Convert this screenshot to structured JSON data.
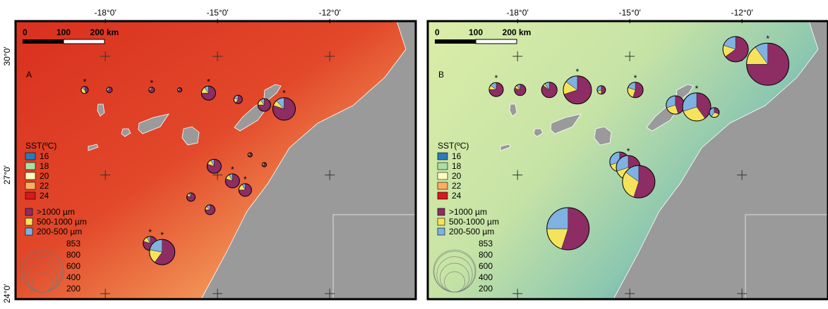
{
  "map": {
    "xlim": [
      -20.4,
      -9.7
    ],
    "ylim": [
      23.86,
      30.89
    ],
    "xticks": [
      {
        "value": -18,
        "label": "-18°0′"
      },
      {
        "value": -15,
        "label": "-15°0′"
      },
      {
        "value": -12,
        "label": "-12°0′"
      }
    ],
    "yticks": [
      {
        "value": 30,
        "label": "30°0′"
      },
      {
        "value": 27,
        "label": "27°0′"
      },
      {
        "value": 24,
        "label": "24°0′"
      }
    ],
    "scale_bar": [
      "0",
      "100",
      "200 km"
    ],
    "sst_legend": {
      "title": "SST(ºC)",
      "values": [
        16,
        18,
        20,
        22,
        24
      ],
      "colors": [
        "#2c7bb6",
        "#abdda4",
        "#ffffbf",
        "#fdae61",
        "#d7191c"
      ]
    },
    "classes": [
      {
        "name": ">1000 µm",
        "color": "#8e2c64"
      },
      {
        "name": "500-1000 µm",
        "color": "#f6e35c"
      },
      {
        "name": "200-500 µm",
        "color": "#7fb2e2"
      }
    ],
    "size_legend": [
      853,
      800,
      600,
      400,
      200
    ]
  },
  "panels": [
    {
      "label": "A",
      "pies": [
        {
          "lon": -18.55,
          "lat": 29.15,
          "total": 24,
          "fractions": [
            45,
            40,
            15
          ],
          "mark": "*"
        },
        {
          "lon": -17.89,
          "lat": 29.15,
          "total": 15,
          "fractions": [
            70,
            15,
            15
          ]
        },
        {
          "lon": -16.76,
          "lat": 29.15,
          "total": 15,
          "fractions": [
            75,
            15,
            10
          ],
          "mark": "*"
        },
        {
          "lon": -16.01,
          "lat": 29.15,
          "total": 9,
          "fractions": [
            70,
            20,
            10
          ]
        },
        {
          "lon": -15.24,
          "lat": 29.07,
          "total": 95,
          "fractions": [
            75,
            15,
            10
          ],
          "mark": "*"
        },
        {
          "lon": -14.45,
          "lat": 28.91,
          "total": 34,
          "fractions": [
            60,
            20,
            20
          ]
        },
        {
          "lon": -13.75,
          "lat": 28.77,
          "total": 77,
          "fractions": [
            75,
            15,
            10
          ]
        },
        {
          "lon": -13.22,
          "lat": 28.67,
          "total": 243,
          "fractions": [
            80,
            8,
            12
          ],
          "mark": "*"
        },
        {
          "lon": -14.13,
          "lat": 27.51,
          "total": 9,
          "fractions": [
            70,
            20,
            10
          ]
        },
        {
          "lon": -13.75,
          "lat": 27.26,
          "total": 9,
          "fractions": [
            70,
            20,
            10
          ]
        },
        {
          "lon": -15.09,
          "lat": 27.22,
          "total": 95,
          "fractions": [
            80,
            12,
            8
          ]
        },
        {
          "lon": -14.6,
          "lat": 26.85,
          "total": 95,
          "fractions": [
            80,
            12,
            8
          ],
          "mark": "*"
        },
        {
          "lon": -14.26,
          "lat": 26.62,
          "total": 77,
          "fractions": [
            75,
            17,
            8
          ],
          "mark": "*"
        },
        {
          "lon": -15.71,
          "lat": 26.44,
          "total": 34,
          "fractions": [
            80,
            12,
            8
          ]
        },
        {
          "lon": -15.2,
          "lat": 26.12,
          "total": 46,
          "fractions": [
            75,
            12,
            13
          ]
        },
        {
          "lon": -16.8,
          "lat": 25.27,
          "total": 95,
          "fractions": [
            80,
            12,
            8
          ],
          "mark": "*"
        },
        {
          "lon": -16.48,
          "lat": 25.05,
          "total": 307,
          "fractions": [
            60,
            18,
            22
          ],
          "mark": "*"
        }
      ]
    },
    {
      "label": "B",
      "pies": [
        {
          "lon": -18.57,
          "lat": 29.16,
          "total": 95,
          "fractions": [
            75,
            10,
            15
          ],
          "mark": "*"
        },
        {
          "lon": -17.93,
          "lat": 29.15,
          "total": 61,
          "fractions": [
            80,
            10,
            10
          ]
        },
        {
          "lon": -17.15,
          "lat": 29.15,
          "total": 115,
          "fractions": [
            85,
            5,
            10
          ]
        },
        {
          "lon": -16.4,
          "lat": 29.15,
          "total": 379,
          "fractions": [
            70,
            15,
            15
          ],
          "mark": "*"
        },
        {
          "lon": -15.76,
          "lat": 29.15,
          "total": 34,
          "fractions": [
            50,
            20,
            30
          ]
        },
        {
          "lon": -14.85,
          "lat": 29.15,
          "total": 115,
          "fractions": [
            55,
            25,
            20
          ],
          "mark": "*"
        },
        {
          "lon": -12.17,
          "lat": 30.18,
          "total": 307,
          "fractions": [
            65,
            15,
            20
          ]
        },
        {
          "lon": -11.31,
          "lat": 29.8,
          "total": 853,
          "fractions": [
            75,
            15,
            10
          ],
          "mark": "*"
        },
        {
          "lon": -13.78,
          "lat": 28.77,
          "total": 160,
          "fractions": [
            45,
            25,
            30
          ]
        },
        {
          "lon": -13.21,
          "lat": 28.72,
          "total": 379,
          "fractions": [
            40,
            30,
            30
          ],
          "mark": "*"
        },
        {
          "lon": -12.74,
          "lat": 28.58,
          "total": 46,
          "fractions": [
            30,
            30,
            40
          ]
        },
        {
          "lon": -15.27,
          "lat": 27.33,
          "total": 186,
          "fractions": [
            55,
            15,
            30
          ]
        },
        {
          "lon": -15.04,
          "lat": 27.19,
          "total": 274,
          "fractions": [
            40,
            30,
            30
          ],
          "mark": "*"
        },
        {
          "lon": -14.76,
          "lat": 26.83,
          "total": 501,
          "fractions": [
            55,
            30,
            15
          ]
        },
        {
          "lon": -16.65,
          "lat": 25.64,
          "total": 853,
          "fractions": [
            55,
            20,
            25
          ]
        }
      ]
    }
  ]
}
